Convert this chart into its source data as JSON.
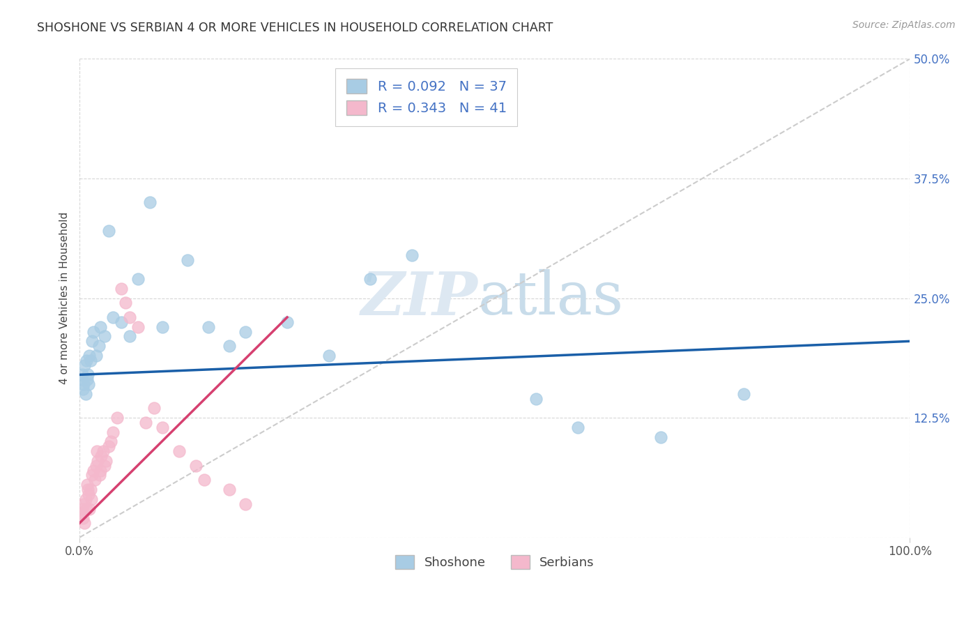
{
  "title": "SHOSHONE VS SERBIAN 4 OR MORE VEHICLES IN HOUSEHOLD CORRELATION CHART",
  "source": "Source: ZipAtlas.com",
  "ylabel": "4 or more Vehicles in Household",
  "xlim": [
    0,
    100
  ],
  "ylim": [
    0,
    50
  ],
  "shoshone_color": "#a8cce4",
  "shoshone_edge_color": "#7aafd4",
  "serbian_color": "#f4b8cc",
  "serbian_edge_color": "#e890b0",
  "shoshone_line_color": "#1a5fa8",
  "serbian_line_color": "#d64070",
  "diagonal_color": "#cccccc",
  "shoshone_R": "0.092",
  "shoshone_N": "37",
  "serbian_R": "0.343",
  "serbian_N": "41",
  "watermark_zip": "ZIP",
  "watermark_atlas": "atlas",
  "grid_color": "#cccccc",
  "ytick_positions": [
    0,
    12.5,
    25.0,
    37.5,
    50.0
  ],
  "ytick_labels": [
    "",
    "12.5%",
    "25.0%",
    "37.5%",
    "50.0%"
  ],
  "xtick_positions": [
    0,
    100
  ],
  "xtick_labels": [
    "0.0%",
    "100.0%"
  ],
  "shoshone_x": [
    0.2,
    0.3,
    0.4,
    0.5,
    0.6,
    0.7,
    0.8,
    0.9,
    1.0,
    1.1,
    1.2,
    1.3,
    1.5,
    1.7,
    2.0,
    2.3,
    2.5,
    3.0,
    3.5,
    4.0,
    5.0,
    6.0,
    7.0,
    8.5,
    10.0,
    13.0,
    15.5,
    18.0,
    20.0,
    25.0,
    30.0,
    35.0,
    40.0,
    55.0,
    60.0,
    70.0,
    80.0
  ],
  "shoshone_y": [
    16.5,
    17.0,
    15.5,
    16.0,
    18.0,
    15.0,
    18.5,
    16.5,
    17.0,
    16.0,
    19.0,
    18.5,
    20.5,
    21.5,
    19.0,
    20.0,
    22.0,
    21.0,
    32.0,
    23.0,
    22.5,
    21.0,
    27.0,
    35.0,
    22.0,
    29.0,
    22.0,
    20.0,
    21.5,
    22.5,
    19.0,
    27.0,
    29.5,
    14.5,
    11.5,
    10.5,
    15.0
  ],
  "serbian_x": [
    0.2,
    0.3,
    0.4,
    0.5,
    0.6,
    0.7,
    0.8,
    0.9,
    1.0,
    1.1,
    1.2,
    1.3,
    1.4,
    1.5,
    1.7,
    1.8,
    2.0,
    2.1,
    2.2,
    2.4,
    2.5,
    2.6,
    2.8,
    3.0,
    3.2,
    3.5,
    3.8,
    4.0,
    4.5,
    5.0,
    5.5,
    6.0,
    7.0,
    8.0,
    9.0,
    10.0,
    12.0,
    14.0,
    15.0,
    18.0,
    20.0
  ],
  "serbian_y": [
    2.5,
    3.0,
    2.0,
    3.5,
    1.5,
    4.0,
    3.0,
    5.5,
    5.0,
    4.5,
    3.0,
    5.0,
    4.0,
    6.5,
    7.0,
    6.0,
    7.5,
    9.0,
    8.0,
    6.5,
    7.0,
    8.5,
    9.0,
    7.5,
    8.0,
    9.5,
    10.0,
    11.0,
    12.5,
    26.0,
    24.5,
    23.0,
    22.0,
    12.0,
    13.5,
    11.5,
    9.0,
    7.5,
    6.0,
    5.0,
    3.5
  ]
}
